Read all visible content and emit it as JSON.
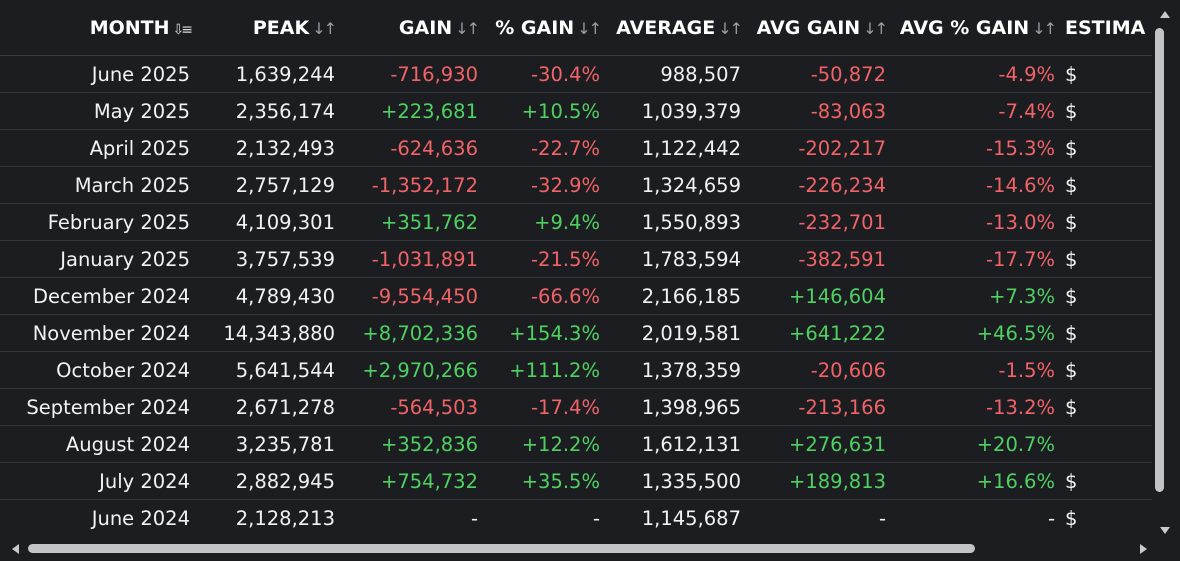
{
  "table": {
    "columns": [
      {
        "key": "month",
        "label": "MONTH",
        "sort_icon": "sort-descending-icon",
        "active": true
      },
      {
        "key": "peak",
        "label": "PEAK",
        "sort_icon": "sort-icon",
        "active": false
      },
      {
        "key": "gain",
        "label": "GAIN",
        "sort_icon": "sort-icon",
        "active": false
      },
      {
        "key": "pct_gain",
        "label": "% GAIN",
        "sort_icon": "sort-icon",
        "active": false
      },
      {
        "key": "average",
        "label": "AVERAGE",
        "sort_icon": "sort-icon",
        "active": false
      },
      {
        "key": "avg_gain",
        "label": "AVG GAIN",
        "sort_icon": "sort-icon",
        "active": false
      },
      {
        "key": "avg_pct_gain",
        "label": "AVG % GAIN",
        "sort_icon": "sort-icon",
        "active": false
      },
      {
        "key": "estimated",
        "label": "ESTIMA",
        "sort_icon": "",
        "active": false
      }
    ],
    "rows": [
      {
        "month": "June 2025",
        "peak": "1,639,244",
        "gain": "-716,930",
        "pct_gain": "-30.4%",
        "average": "988,507",
        "avg_gain": "-50,872",
        "avg_pct_gain": "-4.9%",
        "estimated": "$"
      },
      {
        "month": "May 2025",
        "peak": "2,356,174",
        "gain": "+223,681",
        "pct_gain": "+10.5%",
        "average": "1,039,379",
        "avg_gain": "-83,063",
        "avg_pct_gain": "-7.4%",
        "estimated": "$"
      },
      {
        "month": "April 2025",
        "peak": "2,132,493",
        "gain": "-624,636",
        "pct_gain": "-22.7%",
        "average": "1,122,442",
        "avg_gain": "-202,217",
        "avg_pct_gain": "-15.3%",
        "estimated": "$"
      },
      {
        "month": "March 2025",
        "peak": "2,757,129",
        "gain": "-1,352,172",
        "pct_gain": "-32.9%",
        "average": "1,324,659",
        "avg_gain": "-226,234",
        "avg_pct_gain": "-14.6%",
        "estimated": "$"
      },
      {
        "month": "February 2025",
        "peak": "4,109,301",
        "gain": "+351,762",
        "pct_gain": "+9.4%",
        "average": "1,550,893",
        "avg_gain": "-232,701",
        "avg_pct_gain": "-13.0%",
        "estimated": "$"
      },
      {
        "month": "January 2025",
        "peak": "3,757,539",
        "gain": "-1,031,891",
        "pct_gain": "-21.5%",
        "average": "1,783,594",
        "avg_gain": "-382,591",
        "avg_pct_gain": "-17.7%",
        "estimated": "$"
      },
      {
        "month": "December 2024",
        "peak": "4,789,430",
        "gain": "-9,554,450",
        "pct_gain": "-66.6%",
        "average": "2,166,185",
        "avg_gain": "+146,604",
        "avg_pct_gain": "+7.3%",
        "estimated": "$"
      },
      {
        "month": "November 2024",
        "peak": "14,343,880",
        "gain": "+8,702,336",
        "pct_gain": "+154.3%",
        "average": "2,019,581",
        "avg_gain": "+641,222",
        "avg_pct_gain": "+46.5%",
        "estimated": "$"
      },
      {
        "month": "October 2024",
        "peak": "5,641,544",
        "gain": "+2,970,266",
        "pct_gain": "+111.2%",
        "average": "1,378,359",
        "avg_gain": "-20,606",
        "avg_pct_gain": "-1.5%",
        "estimated": "$"
      },
      {
        "month": "September 2024",
        "peak": "2,671,278",
        "gain": "-564,503",
        "pct_gain": "-17.4%",
        "average": "1,398,965",
        "avg_gain": "-213,166",
        "avg_pct_gain": "-13.2%",
        "estimated": "$"
      },
      {
        "month": "August 2024",
        "peak": "3,235,781",
        "gain": "+352,836",
        "pct_gain": "+12.2%",
        "average": "1,612,131",
        "avg_gain": "+276,631",
        "avg_pct_gain": "+20.7%",
        "estimated": ""
      },
      {
        "month": "July 2024",
        "peak": "2,882,945",
        "gain": "+754,732",
        "pct_gain": "+35.5%",
        "average": "1,335,500",
        "avg_gain": "+189,813",
        "avg_pct_gain": "+16.6%",
        "estimated": "$"
      },
      {
        "month": "June 2024",
        "peak": "2,128,213",
        "gain": "-",
        "pct_gain": "-",
        "average": "1,145,687",
        "avg_gain": "-",
        "avg_pct_gain": "-",
        "estimated": "$"
      }
    ]
  },
  "colors": {
    "background": "#1c1d21",
    "positive": "#4fd162",
    "negative": "#f16366",
    "text": "#f1f2f4"
  },
  "scrollbars": {
    "vertical": {
      "up_icon": "scroll-up-arrow-icon",
      "down_icon": "scroll-down-arrow-icon"
    },
    "horizontal": {
      "left_icon": "scroll-left-arrow-icon",
      "right_icon": "scroll-right-arrow-icon"
    }
  }
}
